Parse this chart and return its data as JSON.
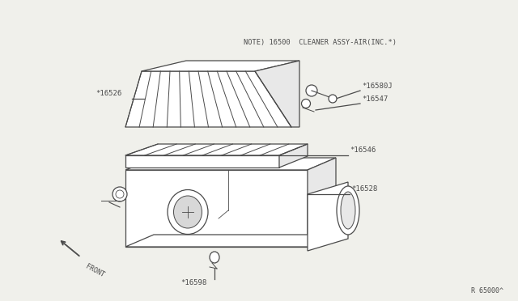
{
  "bg_color": "#f0f0eb",
  "line_color": "#4a4a4a",
  "note_text": "NOTE) 16500  CLEANER ASSY-AIR(INC.*)",
  "ref_text": "R 65000^",
  "figsize": [
    6.4,
    3.72
  ],
  "dpi": 100
}
